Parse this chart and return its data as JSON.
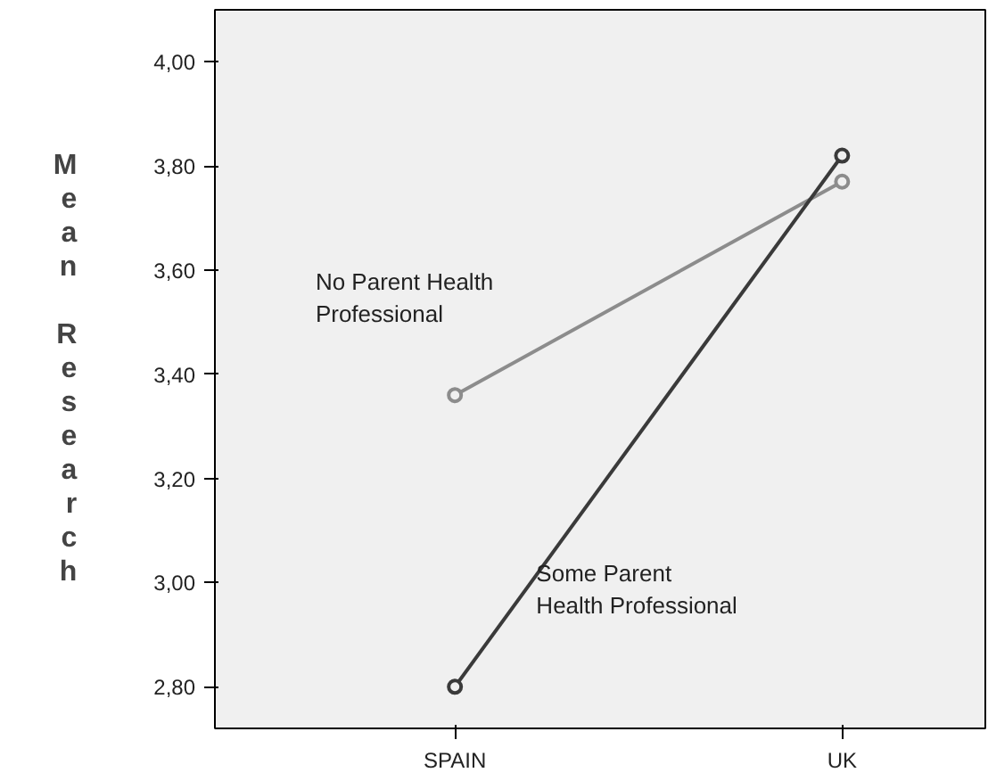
{
  "chart_data": {
    "type": "line",
    "ylabel": "Mean Research",
    "categories": [
      "SPAIN",
      "UK"
    ],
    "series": [
      {
        "name": "No Parent Health\nProfessional",
        "color": "#8c8c8c",
        "values": [
          3.36,
          3.77
        ]
      },
      {
        "name": "Some Parent\nHealth Professional",
        "color": "#3a3a3a",
        "values": [
          2.8,
          3.82
        ]
      }
    ],
    "ylim": [
      2.72,
      4.1
    ],
    "yticks": [
      {
        "value": 2.8,
        "label": "2,80"
      },
      {
        "value": 3.0,
        "label": "3,00"
      },
      {
        "value": 3.2,
        "label": "3,20"
      },
      {
        "value": 3.4,
        "label": "3,40"
      },
      {
        "value": 3.6,
        "label": "3,60"
      },
      {
        "value": 3.8,
        "label": "3,80"
      },
      {
        "value": 4.0,
        "label": "4,00"
      }
    ],
    "grid": false,
    "marker": "circle",
    "line_style": "solid"
  }
}
